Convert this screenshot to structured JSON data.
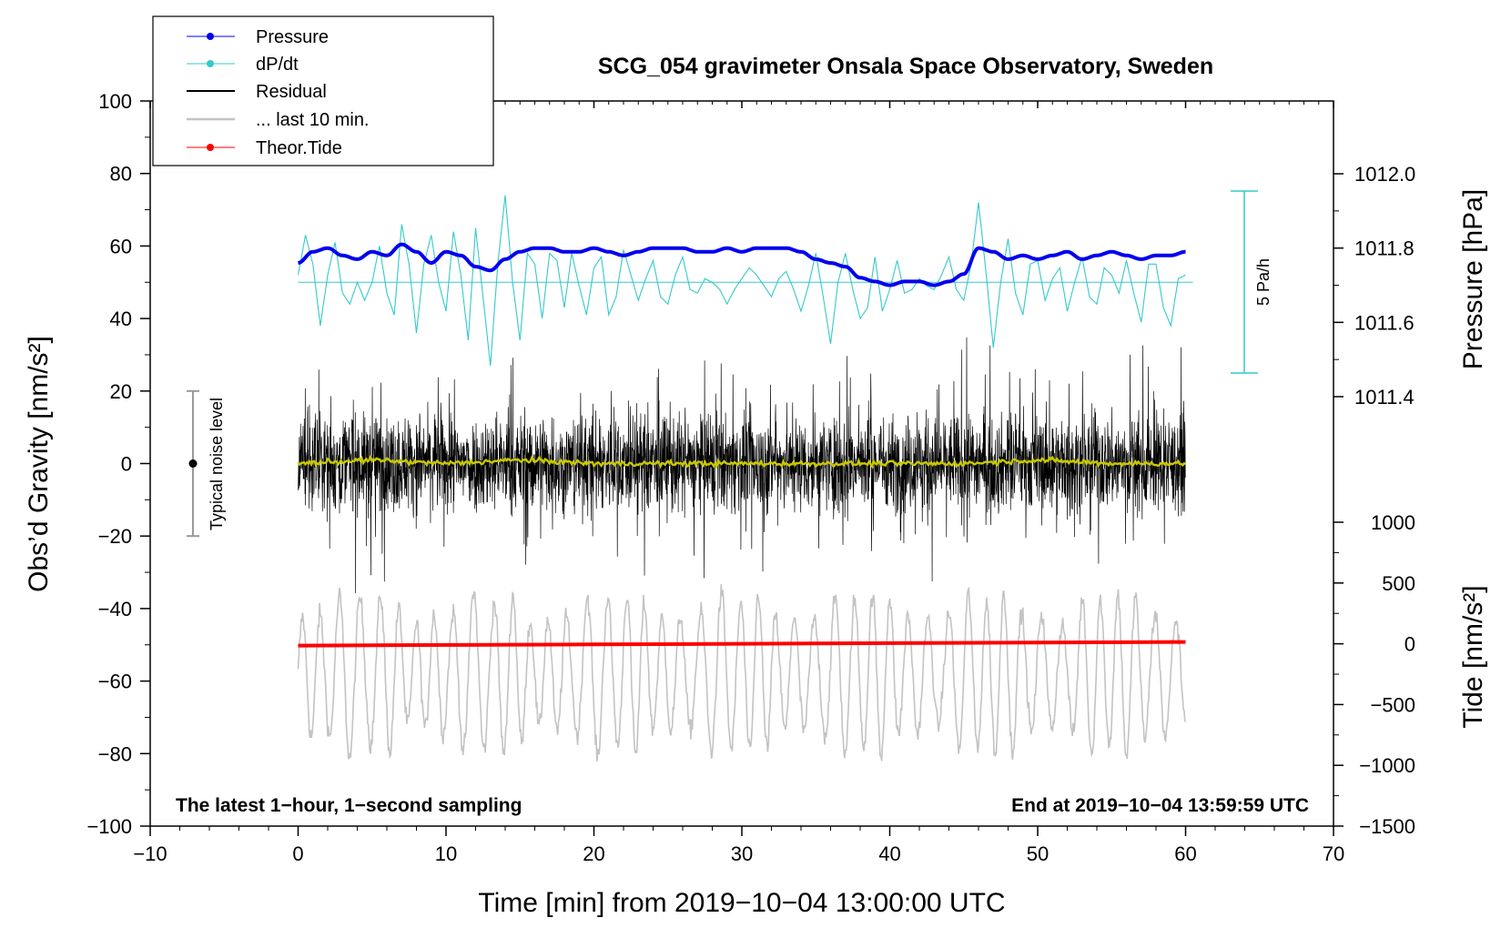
{
  "chart_data": {
    "type": "line",
    "title": "SCG_054 gravimeter Onsala Space Observatory, Sweden",
    "xlabel": "Time [min] from 2019−10−04 13:00:00 UTC",
    "ylabel_left": "Obs’d Gravity [nm/s²]",
    "ylabel_right_pressure": "Pressure [hPa]",
    "ylabel_right_tide": "Tide [nm/s²]",
    "xlim": [
      -10,
      70
    ],
    "ylim": [
      -100,
      100
    ],
    "pressure_lim": [
      1011.0,
      1012.0
    ],
    "tide_lim": [
      -1500,
      1000
    ],
    "x_ticks": [
      -10,
      0,
      10,
      20,
      30,
      40,
      50,
      60,
      70
    ],
    "x_tick_labels": [
      "−10",
      "0",
      "10",
      "20",
      "30",
      "40",
      "50",
      "60",
      "70"
    ],
    "y_ticks": [
      -100,
      -80,
      -60,
      -40,
      -20,
      0,
      20,
      40,
      60,
      80,
      100
    ],
    "y_tick_labels": [
      "−100",
      "−80",
      "−60",
      "−40",
      "−20",
      "0",
      "20",
      "40",
      "60",
      "80",
      "100"
    ],
    "pressure_ticks": [
      1011.4,
      1011.6,
      1011.8,
      1012.0
    ],
    "pressure_tick_labels": [
      "1011.4",
      "1011.6",
      "1011.8",
      "1012.0"
    ],
    "tide_ticks": [
      -1500,
      -1000,
      -500,
      0,
      500,
      1000
    ],
    "tide_tick_labels": [
      "−1500",
      "−1000",
      "−500",
      "0",
      "500",
      "1000"
    ],
    "series": [
      {
        "name": "Pressure",
        "color": "#0000ee",
        "axis": "pressure",
        "x": [
          0,
          1,
          2,
          3,
          4,
          5,
          6,
          7,
          8,
          9,
          10,
          11,
          12,
          13,
          14,
          15,
          16,
          17,
          18,
          19,
          20,
          21,
          22,
          23,
          24,
          25,
          26,
          27,
          28,
          29,
          30,
          31,
          32,
          33,
          34,
          35,
          36,
          37,
          38,
          39,
          40,
          41,
          42,
          43,
          44,
          45,
          46,
          47,
          48,
          49,
          50,
          51,
          52,
          53,
          54,
          55,
          56,
          57,
          58,
          59,
          60
        ],
        "values": [
          1011.76,
          1011.79,
          1011.8,
          1011.78,
          1011.77,
          1011.79,
          1011.78,
          1011.81,
          1011.79,
          1011.76,
          1011.79,
          1011.78,
          1011.75,
          1011.74,
          1011.77,
          1011.79,
          1011.8,
          1011.8,
          1011.79,
          1011.79,
          1011.8,
          1011.79,
          1011.78,
          1011.79,
          1011.8,
          1011.8,
          1011.8,
          1011.79,
          1011.79,
          1011.8,
          1011.79,
          1011.8,
          1011.8,
          1011.8,
          1011.79,
          1011.77,
          1011.76,
          1011.75,
          1011.72,
          1011.71,
          1011.7,
          1011.71,
          1011.71,
          1011.7,
          1011.71,
          1011.73,
          1011.8,
          1011.79,
          1011.77,
          1011.78,
          1011.77,
          1011.78,
          1011.79,
          1011.77,
          1011.78,
          1011.79,
          1011.78,
          1011.77,
          1011.78,
          1011.78,
          1011.79
        ]
      },
      {
        "name": "dP/dt",
        "color": "#35c9c9",
        "axis": "dpdt",
        "baseline_y": 50,
        "x": [
          0.0,
          0.5,
          1.0,
          1.5,
          2.0,
          2.5,
          3.0,
          3.5,
          4.0,
          4.5,
          5.0,
          5.5,
          6.0,
          6.5,
          7.0,
          7.5,
          8.0,
          8.5,
          9.0,
          9.5,
          10.0,
          10.5,
          11.0,
          11.5,
          12.0,
          12.5,
          13.0,
          13.5,
          14.0,
          14.5,
          15.0,
          15.5,
          16.0,
          16.5,
          17.0,
          17.5,
          18.0,
          18.5,
          19.0,
          19.5,
          20.0,
          20.5,
          21.0,
          21.5,
          22.0,
          22.5,
          23.0,
          23.5,
          24.0,
          24.5,
          25.0,
          25.5,
          26.0,
          26.5,
          27.0,
          27.5,
          28.0,
          28.5,
          29.0,
          29.5,
          30.0,
          30.5,
          31.0,
          31.5,
          32.0,
          32.5,
          33.0,
          33.5,
          34.0,
          34.5,
          35.0,
          35.5,
          36.0,
          36.5,
          37.0,
          37.5,
          38.0,
          38.5,
          39.0,
          39.5,
          40.0,
          40.5,
          41.0,
          41.5,
          42.0,
          42.5,
          43.0,
          43.5,
          44.0,
          44.5,
          45.0,
          45.5,
          46.0,
          46.5,
          47.0,
          47.5,
          48.0,
          48.5,
          49.0,
          49.5,
          50.0,
          50.5,
          51.0,
          51.5,
          52.0,
          52.5,
          53.0,
          53.5,
          54.0,
          54.5,
          55.0,
          55.5,
          56.0,
          56.5,
          57.0,
          57.5,
          58.0,
          58.5,
          59.0,
          59.5,
          60.0
        ],
        "values": [
          52,
          63,
          55,
          38,
          52,
          61,
          47,
          44,
          50,
          45,
          50,
          60,
          47,
          41,
          66,
          55,
          36,
          55,
          63,
          50,
          42,
          64,
          52,
          34,
          65,
          46,
          27,
          55,
          74,
          50,
          34,
          58,
          55,
          40,
          58,
          56,
          43,
          58,
          49,
          41,
          54,
          57,
          41,
          46,
          59,
          52,
          45,
          51,
          56,
          46,
          44,
          52,
          57,
          48,
          47,
          51,
          50,
          48,
          44,
          48,
          51,
          54,
          52,
          49,
          46,
          51,
          53,
          48,
          42,
          49,
          58,
          46,
          33,
          50,
          58,
          48,
          40,
          43,
          57,
          42,
          48,
          56,
          47,
          48,
          51,
          49,
          48,
          52,
          57,
          48,
          45,
          55,
          72,
          53,
          32,
          50,
          62,
          47,
          41,
          55,
          56,
          45,
          51,
          54,
          42,
          50,
          57,
          46,
          44,
          54,
          52,
          47,
          56,
          47,
          39,
          55,
          55,
          43,
          38,
          51,
          52
        ]
      },
      {
        "name": "Residual",
        "color": "#000000",
        "axis": "gravity",
        "envelope": "±25 nm/s² noise, peaks to ±45",
        "x_range": [
          0,
          60
        ]
      },
      {
        "name": "... last 10 min.",
        "color": "#c3c3c3",
        "axis": "tide",
        "note": "oscillating trace, -1100 to +600 nm/s²",
        "x_range": [
          0,
          60
        ]
      },
      {
        "name": "Theor.Tide",
        "color": "#ff0000",
        "axis": "tide",
        "x": [
          0,
          10,
          20,
          30,
          40,
          50,
          60
        ],
        "values": [
          -15,
          -10,
          -5,
          0,
          5,
          10,
          15
        ]
      },
      {
        "name": "smoothed residual",
        "color": "#c8c800",
        "axis": "gravity",
        "x": [
          0,
          5,
          10,
          15,
          20,
          25,
          30,
          35,
          40,
          45,
          50,
          55,
          60
        ],
        "values": [
          0,
          1,
          0,
          1,
          0,
          0,
          0,
          0,
          0,
          0,
          1,
          0,
          0
        ]
      }
    ],
    "legend": [
      {
        "label": "Pressure",
        "color": "#0000ee",
        "marker": true
      },
      {
        "label": "dP/dt",
        "color": "#35c9c9",
        "marker": true
      },
      {
        "label": "Residual",
        "color": "#000000",
        "marker": false
      },
      {
        "label": "... last 10 min.",
        "color": "#c3c3c3",
        "marker": false
      },
      {
        "label": "Theor.Tide",
        "color": "#ff0000",
        "marker": true
      }
    ],
    "legend_position": "top-left",
    "annotations": {
      "noise_level": "Typical noise level",
      "noise_range": [
        -20,
        20
      ],
      "dpdt_scale": "5 Pa/h",
      "bottom_left": "The latest 1−hour, 1−second sampling",
      "bottom_right": "End at 2019−10−04 13:59:59 UTC"
    }
  }
}
